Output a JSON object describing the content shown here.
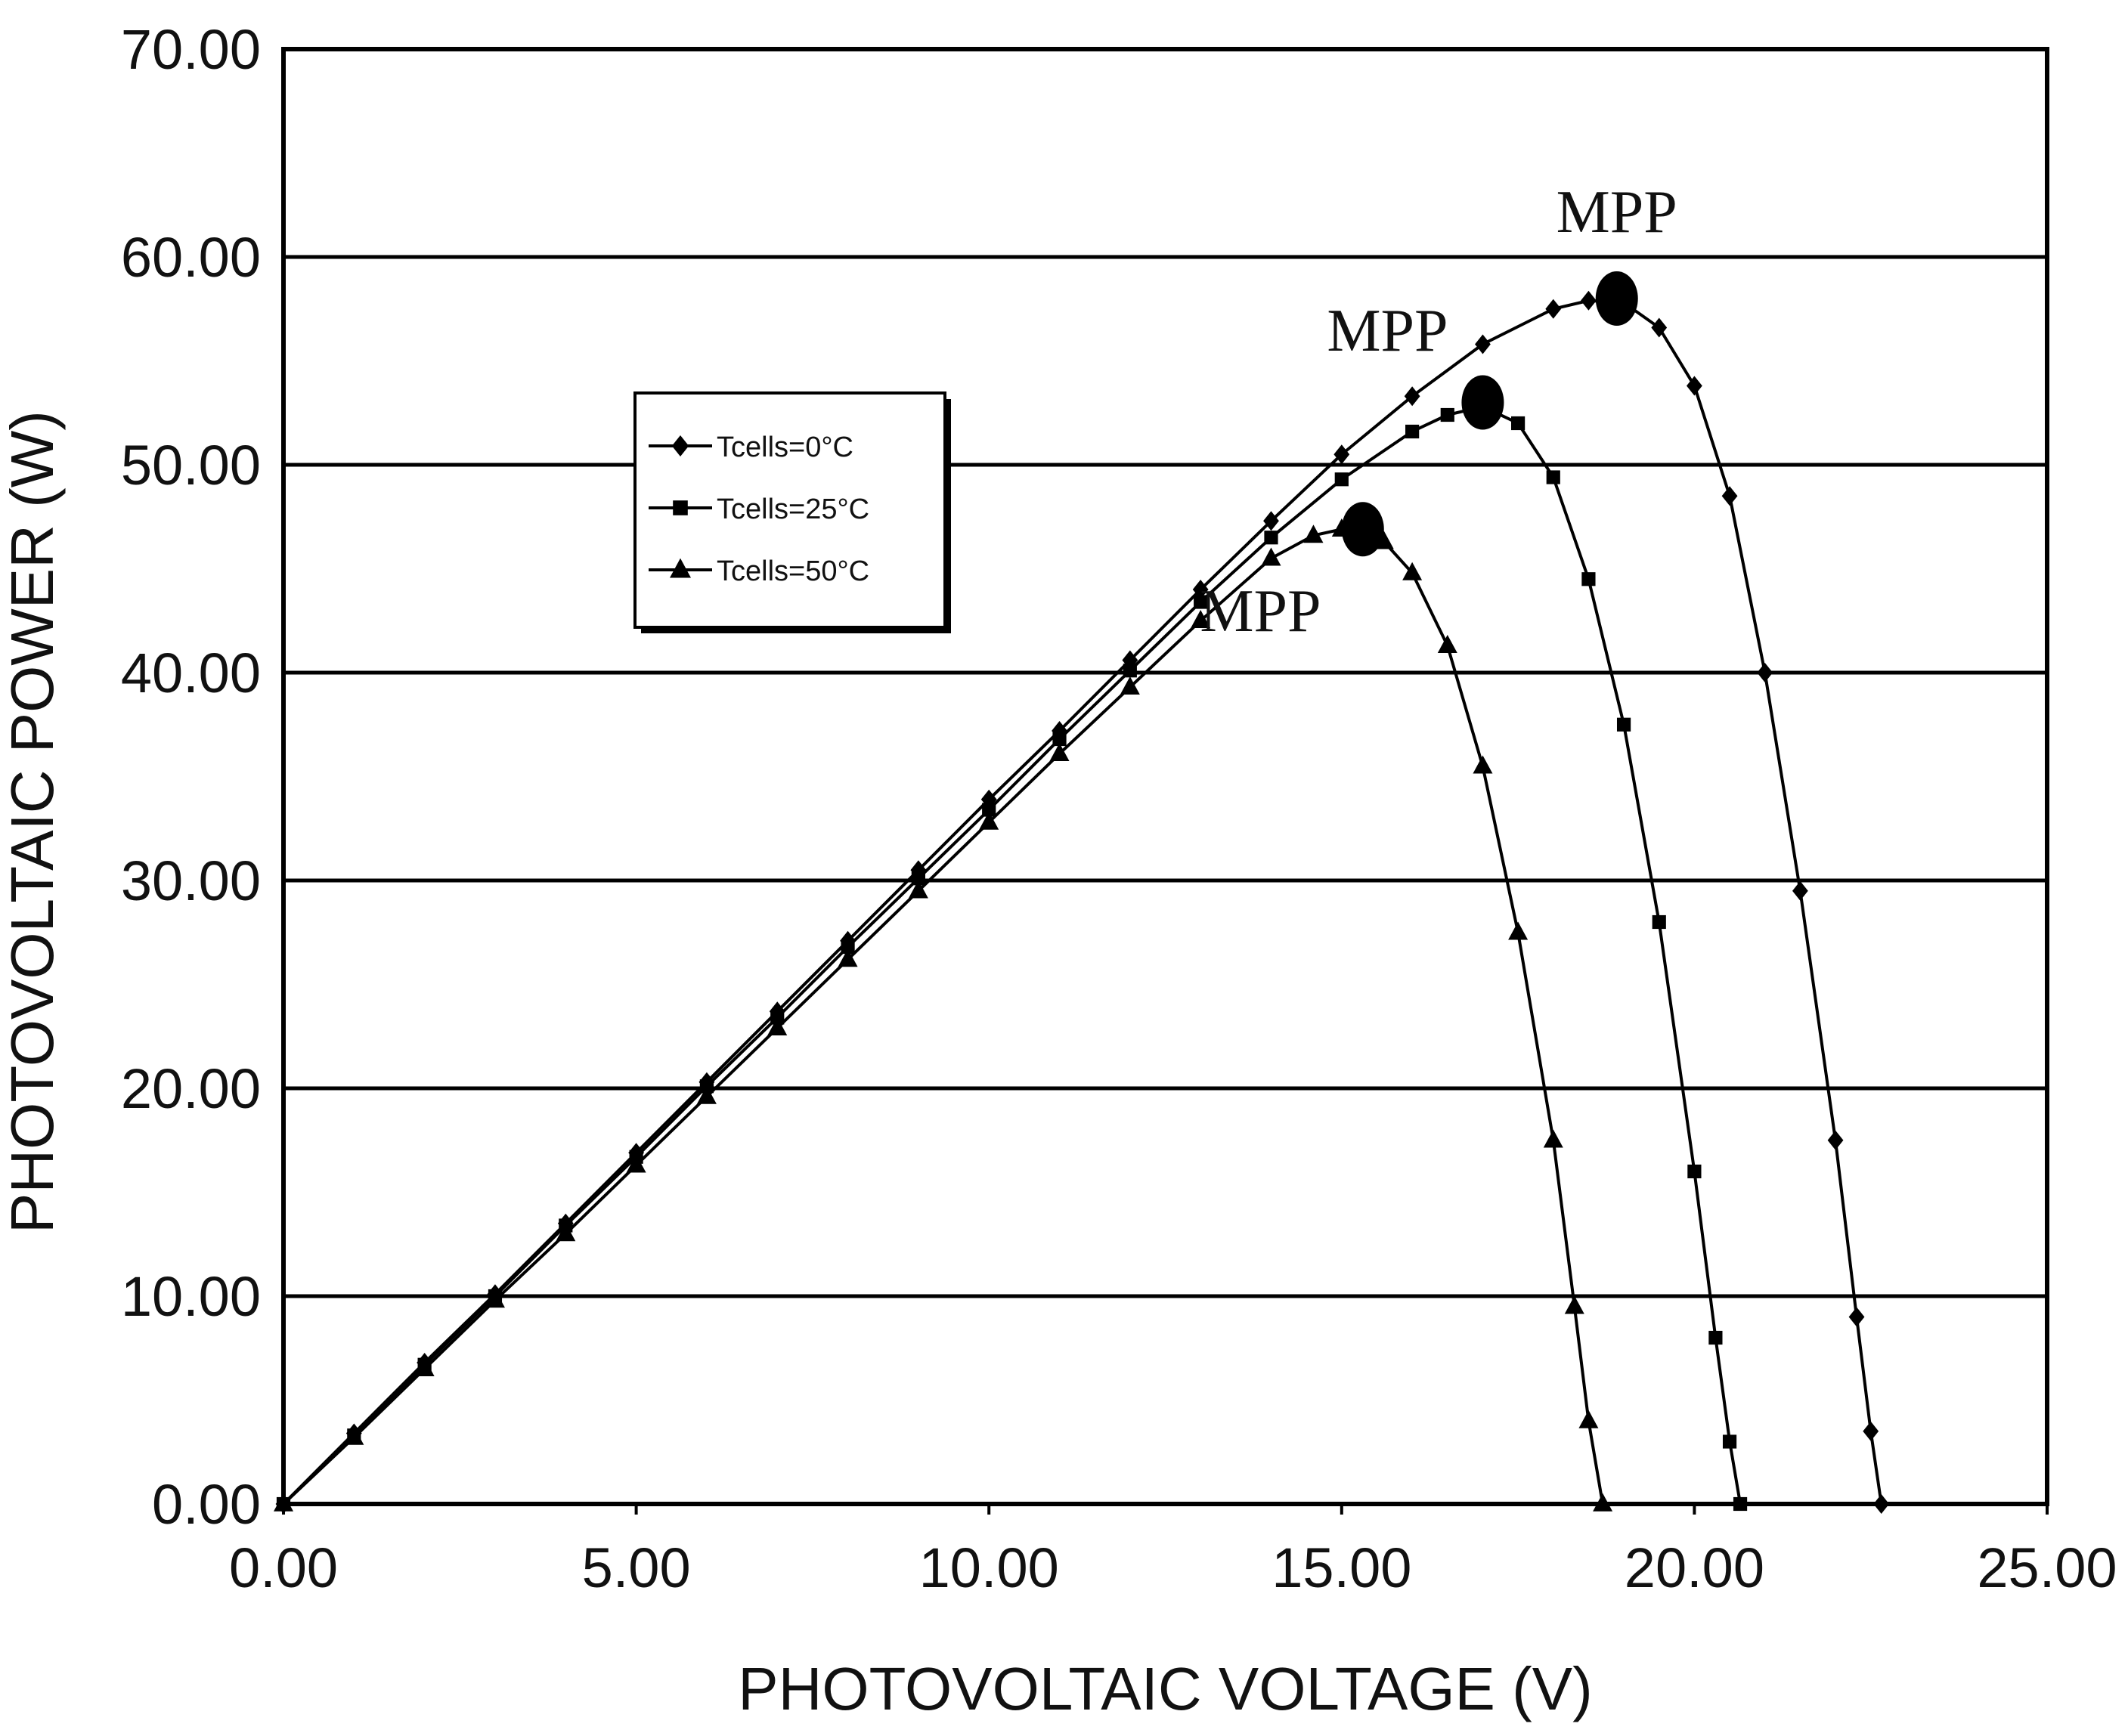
{
  "chart_data": {
    "type": "line",
    "title": "",
    "xlabel": "PHOTOVOLTAIC VOLTAGE (V)",
    "ylabel": "PHOTOVOLTAIC POWER (W)",
    "xlim": [
      0,
      25
    ],
    "ylim": [
      0,
      70
    ],
    "x_ticks": [
      "0.00",
      "5.00",
      "10.00",
      "15.00",
      "20.00",
      "25.00"
    ],
    "y_ticks": [
      "0.00",
      "10.00",
      "20.00",
      "30.00",
      "40.00",
      "50.00",
      "60.00",
      "70.00"
    ],
    "grid": "horizontal",
    "legend_position": "upper-left",
    "series": [
      {
        "name": "Tcells=0°C",
        "marker": "diamond",
        "x": [
          0,
          1,
          2,
          3,
          4,
          5,
          6,
          7,
          8,
          9,
          10,
          11,
          12,
          13,
          14,
          15,
          16,
          17,
          18,
          18.5,
          19.0,
          19.5,
          20.0,
          20.5,
          21.0,
          21.5,
          22.0,
          22.3,
          22.5,
          22.65
        ],
        "y": [
          0,
          3.4,
          6.8,
          10.1,
          13.5,
          16.9,
          20.3,
          23.7,
          27.1,
          30.5,
          33.9,
          37.2,
          40.6,
          44.0,
          47.3,
          50.5,
          53.3,
          55.8,
          57.5,
          57.9,
          57.8,
          56.6,
          53.8,
          48.5,
          40.0,
          29.5,
          17.5,
          9.0,
          3.5,
          0
        ]
      },
      {
        "name": "Tcells=25°C",
        "marker": "square",
        "x": [
          0,
          1,
          2,
          3,
          4,
          5,
          6,
          7,
          8,
          9,
          10,
          11,
          12,
          13,
          14,
          15,
          16,
          16.5,
          17.0,
          17.5,
          18.0,
          18.5,
          19.0,
          19.5,
          20.0,
          20.3,
          20.5,
          20.65
        ],
        "y": [
          0,
          3.3,
          6.7,
          10.0,
          13.4,
          16.7,
          20.1,
          23.4,
          26.8,
          30.1,
          33.4,
          36.8,
          40.1,
          43.4,
          46.5,
          49.3,
          51.6,
          52.4,
          52.8,
          52.0,
          49.4,
          44.5,
          37.5,
          28.0,
          16.0,
          8.0,
          3.0,
          0
        ]
      },
      {
        "name": "Tcells=50°C",
        "marker": "triangle",
        "x": [
          0,
          1,
          2,
          3,
          4,
          5,
          6,
          7,
          8,
          9,
          10,
          11,
          12,
          13,
          14,
          14.6,
          15.0,
          15.3,
          15.6,
          16.0,
          16.5,
          17.0,
          17.5,
          18.0,
          18.3,
          18.5,
          18.7
        ],
        "y": [
          0,
          3.2,
          6.5,
          9.8,
          13.0,
          16.3,
          19.6,
          22.9,
          26.2,
          29.5,
          32.8,
          36.1,
          39.3,
          42.5,
          45.5,
          46.6,
          46.9,
          46.8,
          46.3,
          44.8,
          41.3,
          35.5,
          27.5,
          17.5,
          9.5,
          4.0,
          0
        ]
      }
    ],
    "annotations": [
      {
        "text": "MPP",
        "label_x": 18.9,
        "label_y": 61.2,
        "marker_x": 18.9,
        "marker_y": 58.0
      },
      {
        "text": "MPP",
        "label_x": 15.65,
        "label_y": 55.5,
        "marker_x": 17.0,
        "marker_y": 53.0
      },
      {
        "text": "MPP",
        "label_x": 13.85,
        "label_y": 42.0,
        "marker_x": 15.3,
        "marker_y": 46.9
      }
    ]
  }
}
